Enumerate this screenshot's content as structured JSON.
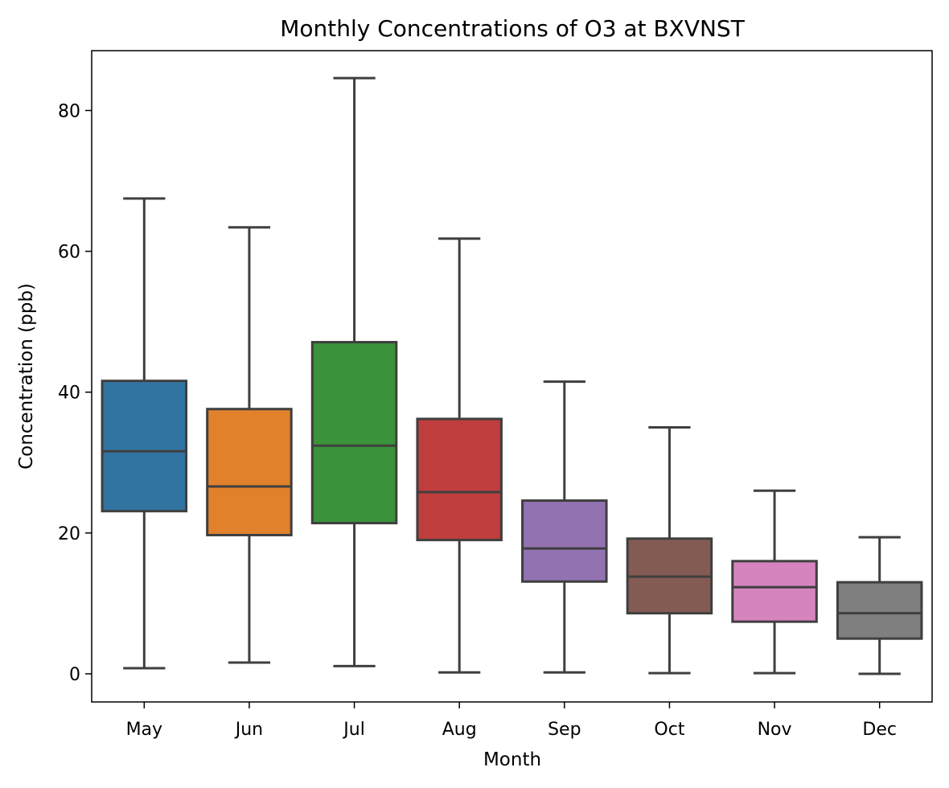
{
  "chart_data": {
    "type": "box",
    "title": "Monthly Concentrations of O3 at BXVNST",
    "xlabel": "Month",
    "ylabel": "Concentration (ppb)",
    "ylim": [
      -4,
      88.5
    ],
    "yticks": [
      0,
      20,
      40,
      60,
      80
    ],
    "grid": false,
    "categories": [
      "May",
      "Jun",
      "Jul",
      "Aug",
      "Sep",
      "Oct",
      "Nov",
      "Dec"
    ],
    "series": [
      {
        "category": "May",
        "whisker_low": 0.8,
        "q1": 23.1,
        "median": 31.6,
        "q3": 41.6,
        "whisker_high": 67.5,
        "color": "#3274a1"
      },
      {
        "category": "Jun",
        "whisker_low": 1.6,
        "q1": 19.7,
        "median": 26.6,
        "q3": 37.6,
        "whisker_high": 63.4,
        "color": "#e1812c"
      },
      {
        "category": "Jul",
        "whisker_low": 1.1,
        "q1": 21.4,
        "median": 32.4,
        "q3": 47.1,
        "whisker_high": 84.6,
        "color": "#3a923a"
      },
      {
        "category": "Aug",
        "whisker_low": 0.2,
        "q1": 19.0,
        "median": 25.8,
        "q3": 36.2,
        "whisker_high": 61.8,
        "color": "#c03d3e"
      },
      {
        "category": "Sep",
        "whisker_low": 0.2,
        "q1": 13.1,
        "median": 17.8,
        "q3": 24.6,
        "whisker_high": 41.5,
        "color": "#9372b2"
      },
      {
        "category": "Oct",
        "whisker_low": 0.1,
        "q1": 8.6,
        "median": 13.8,
        "q3": 19.2,
        "whisker_high": 35.0,
        "color": "#845b53"
      },
      {
        "category": "Nov",
        "whisker_low": 0.1,
        "q1": 7.4,
        "median": 12.3,
        "q3": 16.0,
        "whisker_high": 26.0,
        "color": "#d684bd"
      },
      {
        "category": "Dec",
        "whisker_low": 0.0,
        "q1": 5.0,
        "median": 8.6,
        "q3": 13.0,
        "whisker_high": 19.4,
        "color": "#7f7f7f"
      }
    ],
    "line_color": "#3f3f3f"
  }
}
